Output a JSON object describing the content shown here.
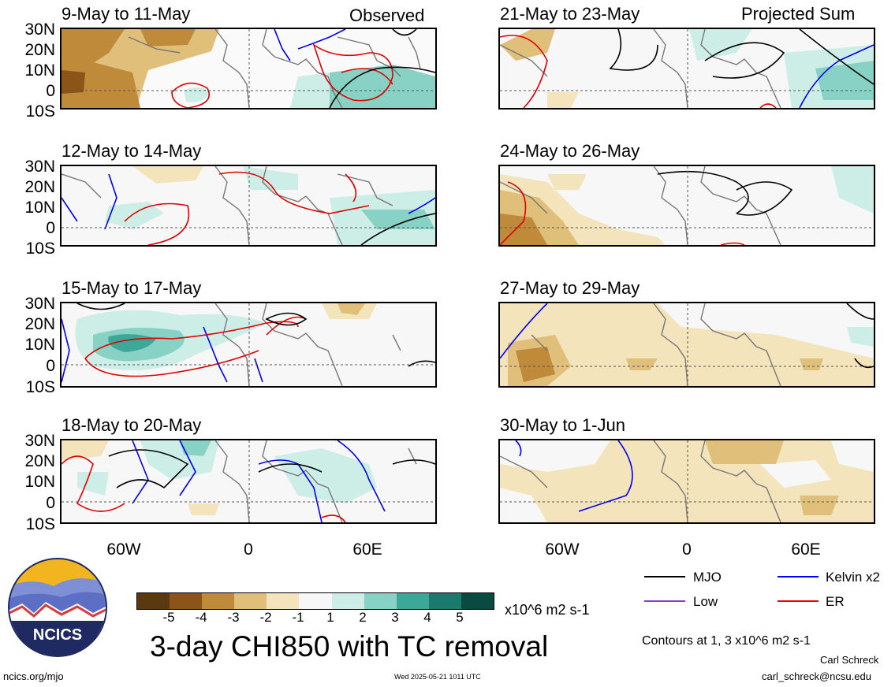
{
  "panels": [
    {
      "id": "p1",
      "title": "9-May to 11-May",
      "tag": "Observed"
    },
    {
      "id": "p2",
      "title": "12-May to 14-May",
      "tag": ""
    },
    {
      "id": "p3",
      "title": "15-May to 17-May",
      "tag": ""
    },
    {
      "id": "p4",
      "title": "18-May to 20-May",
      "tag": ""
    },
    {
      "id": "p5",
      "title": "21-May to 23-May",
      "tag": "Projected Sum"
    },
    {
      "id": "p6",
      "title": "24-May to 26-May",
      "tag": ""
    },
    {
      "id": "p7",
      "title": "27-May to 29-May",
      "tag": ""
    },
    {
      "id": "p8",
      "title": "30-May to 1-Jun",
      "tag": ""
    }
  ],
  "lat_labels": [
    "30N",
    "20N",
    "10N",
    "0",
    "10S"
  ],
  "lon_labels": [
    "60W",
    "0",
    "60E"
  ],
  "colorbar": {
    "ticks": [
      "-5",
      "-4",
      "-3",
      "-2",
      "-1",
      "1",
      "2",
      "3",
      "4",
      "5"
    ],
    "colors": [
      "#5a3810",
      "#8c5418",
      "#bf8a3a",
      "#dfbf7a",
      "#f4e4bc",
      "#f7f7f7",
      "#cdeee6",
      "#87d2c4",
      "#3da898",
      "#1a7a6e",
      "#0a4a40"
    ],
    "units": "x10^6 m2 s-1"
  },
  "legend": {
    "items": [
      {
        "label": "MJO",
        "color": "#000000"
      },
      {
        "label": "Kelvin x2",
        "color": "#0000ee"
      },
      {
        "label": "Low",
        "color": "#8a3ad8"
      },
      {
        "label": "ER",
        "color": "#ee0000"
      }
    ],
    "contours_note": "Contours at 1, 3 x10^6 m2 s-1"
  },
  "logo": {
    "text": "NCICS"
  },
  "main_title": "3-day CHI850 with TC removal",
  "footer": {
    "url": "ncics.org/mjo",
    "timestamp": "Wed 2025-05-21 1011 UTC",
    "author": "Carl Schreck",
    "email": "carl_schreck@ncsu.edu"
  }
}
